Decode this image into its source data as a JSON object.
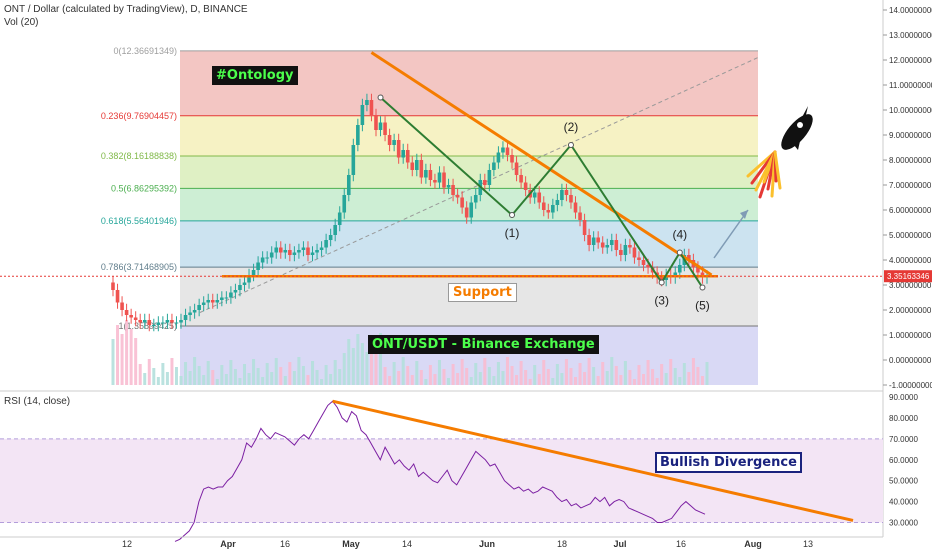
{
  "header": {
    "symbol_line": "ONT / Dollar (calculated by TradingView), D, BINANCE",
    "volume_label": "Vol (20)",
    "rsi_label": "RSI (14, close)"
  },
  "annotations": {
    "ontology_tag": "#Ontology",
    "support_label": "Support",
    "exchange_label": "ONT/USDT - Binance Exchange",
    "divergence_label": "Bullish Divergence",
    "waves": [
      "(1)",
      "(2)",
      "(3)",
      "(4)",
      "(5)"
    ]
  },
  "colors": {
    "up_candle": "#26a69a",
    "down_candle": "#ef5350",
    "trendline": "#f57c00",
    "wave_line": "#2e7d32",
    "tag_bg": "#111111",
    "tag_text": "#4cff4c",
    "price_badge": "#e53935",
    "rsi_band": "#f3e5f5",
    "rsi_line": "#7b1fa2"
  },
  "chart_data": [
    {
      "type": "candlestick",
      "yscale": "linear",
      "ylim": [
        -1,
        14
      ],
      "y_ticks": [
        "14.00000000",
        "13.00000000",
        "12.00000000",
        "11.00000000",
        "10.00000000",
        "9.00000000",
        "8.00000000",
        "7.00000000",
        "6.00000000",
        "5.00000000",
        "4.00000000",
        "3.00000000",
        "2.00000000",
        "1.00000000",
        "0.00000000",
        "-1.00000000"
      ],
      "x_ticks": [
        "12",
        "Apr",
        "16",
        "May",
        "14",
        "Jun",
        "18",
        "Jul",
        "16",
        "Aug",
        "13"
      ],
      "last_price": "3.35163346",
      "fib_levels": [
        {
          "label": "0(12.36691349)",
          "value": 12.36691349,
          "color": "#9e9e9e"
        },
        {
          "label": "0.236(9.76904457)",
          "value": 9.76904457,
          "color": "#e53935"
        },
        {
          "label": "0.382(8.16188838)",
          "value": 8.16188838,
          "color": "#81b94a"
        },
        {
          "label": "0.5(6.86295392)",
          "value": 6.86295392,
          "color": "#4caf50"
        },
        {
          "label": "0.618(5.56401946)",
          "value": 5.56401946,
          "color": "#26a69a"
        },
        {
          "label": "0.786(3.71468905)",
          "value": 3.71468905,
          "color": "#607d8b"
        },
        {
          "label": "1(1.35899425)",
          "value": 1.35899425,
          "color": "#757575"
        }
      ],
      "fib_bands": [
        {
          "from": 12.36691349,
          "to": 9.76904457,
          "color": "#f3c6c3"
        },
        {
          "from": 9.76904457,
          "to": 8.16188838,
          "color": "#f6f2c4"
        },
        {
          "from": 8.16188838,
          "to": 6.86295392,
          "color": "#dff0c4"
        },
        {
          "from": 6.86295392,
          "to": 5.56401946,
          "color": "#cdeed4"
        },
        {
          "from": 5.56401946,
          "to": 3.71468905,
          "color": "#cce3f0"
        },
        {
          "from": 3.71468905,
          "to": 1.35899425,
          "color": "#e6e6e6"
        },
        {
          "from": 1.35899425,
          "to": -1.0,
          "color": "#d9d9f5"
        }
      ],
      "close": [
        2.8,
        2.3,
        2.0,
        1.8,
        1.7,
        1.6,
        1.5,
        1.6,
        1.4,
        1.4,
        1.5,
        1.5,
        1.6,
        1.5,
        1.5,
        1.6,
        1.8,
        1.9,
        2.0,
        2.2,
        2.3,
        2.4,
        2.3,
        2.4,
        2.5,
        2.5,
        2.7,
        2.8,
        3.0,
        3.1,
        3.4,
        3.6,
        3.9,
        4.1,
        4.1,
        4.3,
        4.5,
        4.3,
        4.4,
        4.2,
        4.3,
        4.4,
        4.5,
        4.2,
        4.3,
        4.4,
        4.5,
        4.8,
        5.0,
        5.4,
        5.9,
        6.6,
        7.4,
        8.6,
        9.4,
        10.2,
        10.4,
        9.8,
        9.2,
        9.5,
        9.0,
        8.6,
        8.8,
        8.1,
        8.4,
        7.9,
        7.6,
        8.0,
        7.3,
        7.6,
        7.2,
        7.1,
        7.5,
        6.9,
        7.0,
        6.6,
        6.5,
        6.1,
        5.7,
        6.3,
        6.6,
        7.2,
        7.0,
        7.6,
        7.9,
        8.3,
        8.5,
        8.2,
        7.9,
        7.4,
        7.1,
        6.8,
        6.5,
        6.7,
        6.3,
        6.0,
        5.9,
        6.2,
        6.4,
        6.8,
        6.6,
        6.3,
        5.9,
        5.6,
        5.0,
        4.6,
        4.9,
        4.7,
        4.5,
        4.6,
        4.8,
        4.4,
        4.2,
        4.6,
        4.5,
        4.1,
        4.0,
        3.8,
        3.7,
        3.5,
        3.3,
        3.2,
        3.4,
        3.3,
        3.5,
        3.8,
        4.2,
        4.0,
        3.7,
        3.5,
        3.3,
        3.35
      ],
      "volume_note": "volume bars drawn under price (Vol 20)",
      "drawings": {
        "support_y": 3.35,
        "wave_points": [
          [
            59,
            10.5
          ],
          [
            88,
            5.8
          ],
          [
            101,
            8.6
          ],
          [
            121,
            3.1
          ],
          [
            125,
            4.3
          ],
          [
            130,
            2.9
          ]
        ],
        "wave_labels": [
          "(1)",
          "(2)",
          "(3)",
          "(4)",
          "(5)"
        ],
        "down_trendline": [
          [
            57,
            12.3
          ],
          [
            132,
            3.4
          ]
        ],
        "fib_trend": [
          [
            30,
            1.9
          ],
          [
            140,
            12.1
          ]
        ]
      }
    },
    {
      "type": "line",
      "title": "RSI (14, close)",
      "ylim": [
        25,
        90
      ],
      "y_ticks": [
        "90.0000",
        "80.0000",
        "70.0000",
        "60.0000",
        "50.0000",
        "40.0000",
        "30.0000"
      ],
      "band": [
        30,
        70
      ],
      "values": [
        21,
        22,
        24,
        26,
        30,
        40,
        46,
        47,
        46,
        47,
        47,
        50,
        52,
        56,
        60,
        68,
        66,
        70,
        75,
        72,
        70,
        73,
        72,
        71,
        69,
        67,
        70,
        72,
        70,
        74,
        78,
        82,
        86,
        88,
        85,
        80,
        78,
        83,
        81,
        74,
        72,
        68,
        64,
        60,
        66,
        62,
        58,
        60,
        57,
        55,
        58,
        52,
        54,
        52,
        50,
        49,
        52,
        55,
        50,
        48,
        52,
        56,
        60,
        64,
        62,
        60,
        57,
        58,
        54,
        50,
        48,
        46,
        47,
        45,
        46,
        44,
        45,
        47,
        46,
        45,
        42,
        40,
        41,
        38,
        39,
        37,
        38,
        39,
        42,
        40,
        42,
        38,
        40,
        41,
        40,
        37,
        36,
        35,
        34,
        33,
        32,
        30,
        30,
        31,
        32,
        35,
        38,
        40,
        38,
        36,
        35,
        34
      ],
      "divergence_line": [
        [
          33,
          88
        ],
        [
          142,
          31
        ]
      ]
    }
  ]
}
